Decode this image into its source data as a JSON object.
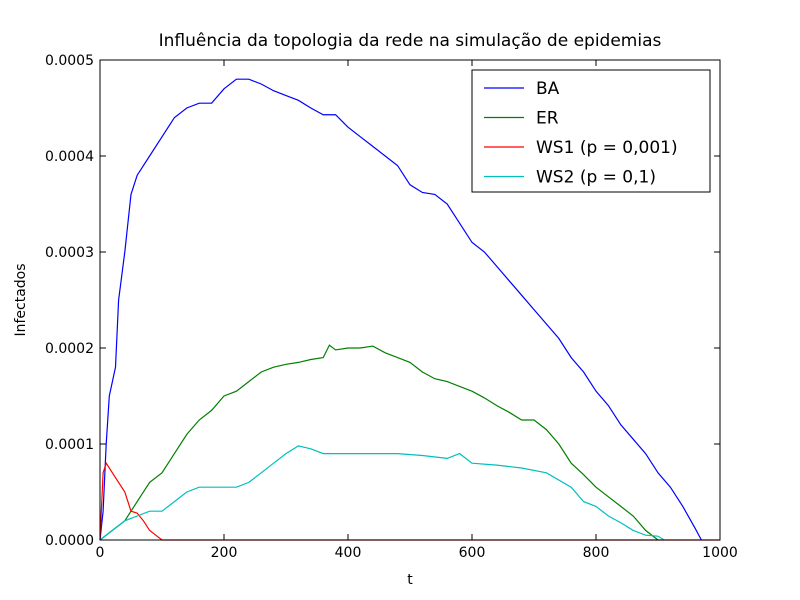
{
  "chart_data": {
    "type": "line",
    "title": "Influência da topologia da rede na simulação de epidemias",
    "xlabel": "t",
    "ylabel": "Infectados",
    "xlim": [
      0,
      1000
    ],
    "xticks": [
      0,
      200,
      400,
      600,
      800,
      1000
    ],
    "ylim": [
      0,
      0.0005
    ],
    "yticks": [
      {
        "value": 0,
        "label": "0.0000"
      },
      {
        "value": 0.0001,
        "label": "0.0001"
      },
      {
        "value": 0.0002,
        "label": "0.0002"
      },
      {
        "value": 0.0003,
        "label": "0.0003"
      },
      {
        "value": 0.0004,
        "label": "0.0004"
      },
      {
        "value": 0.0005,
        "label": "0.0005"
      }
    ],
    "legend": "upper right",
    "series": [
      {
        "name": "BA",
        "color": "#0000ff",
        "x": [
          0,
          5,
          10,
          15,
          25,
          30,
          40,
          50,
          60,
          80,
          100,
          120,
          140,
          160,
          180,
          200,
          220,
          240,
          260,
          280,
          300,
          320,
          340,
          360,
          380,
          400,
          420,
          440,
          460,
          480,
          500,
          520,
          540,
          560,
          580,
          600,
          620,
          640,
          660,
          680,
          700,
          720,
          740,
          760,
          780,
          800,
          820,
          840,
          860,
          880,
          900,
          920,
          940,
          960,
          970
        ],
        "values": [
          0,
          3e-05,
          0.0001,
          0.00015,
          0.00018,
          0.00025,
          0.0003,
          0.00036,
          0.00038,
          0.0004,
          0.00042,
          0.00044,
          0.00045,
          0.000455,
          0.000455,
          0.00047,
          0.00048,
          0.00048,
          0.000475,
          0.000468,
          0.000463,
          0.000458,
          0.00045,
          0.000443,
          0.000443,
          0.00043,
          0.00042,
          0.00041,
          0.0004,
          0.00039,
          0.00037,
          0.000362,
          0.00036,
          0.00035,
          0.00033,
          0.00031,
          0.0003,
          0.000285,
          0.00027,
          0.000255,
          0.00024,
          0.000225,
          0.00021,
          0.00019,
          0.000175,
          0.000155,
          0.00014,
          0.00012,
          0.000105,
          9e-05,
          7e-05,
          5.5e-05,
          3.5e-05,
          1.2e-05,
          0
        ]
      },
      {
        "name": "ER",
        "color": "#008000",
        "x": [
          0,
          20,
          40,
          60,
          80,
          100,
          120,
          140,
          160,
          180,
          200,
          220,
          240,
          260,
          280,
          300,
          320,
          340,
          360,
          370,
          380,
          400,
          420,
          440,
          460,
          480,
          500,
          520,
          540,
          560,
          580,
          600,
          620,
          640,
          660,
          680,
          700,
          720,
          740,
          760,
          780,
          800,
          820,
          840,
          860,
          880,
          900
        ],
        "values": [
          0,
          1e-05,
          2e-05,
          4e-05,
          6e-05,
          7e-05,
          9e-05,
          0.00011,
          0.000125,
          0.000135,
          0.00015,
          0.000155,
          0.000165,
          0.000175,
          0.00018,
          0.000183,
          0.000185,
          0.000188,
          0.00019,
          0.000203,
          0.000198,
          0.0002,
          0.0002,
          0.000202,
          0.000195,
          0.00019,
          0.000185,
          0.000175,
          0.000168,
          0.000165,
          0.00016,
          0.000155,
          0.000148,
          0.00014,
          0.000133,
          0.000125,
          0.000125,
          0.000115,
          0.0001,
          8e-05,
          6.8e-05,
          5.5e-05,
          4.5e-05,
          3.5e-05,
          2.5e-05,
          1e-05,
          0
        ]
      },
      {
        "name": "WS1 (p = 0,001)",
        "color": "#ff0000",
        "x": [
          0,
          5,
          10,
          20,
          30,
          40,
          50,
          60,
          70,
          80,
          90,
          100,
          1000
        ],
        "values": [
          0,
          7e-05,
          8e-05,
          7e-05,
          6e-05,
          5e-05,
          3e-05,
          2.8e-05,
          2e-05,
          1e-05,
          5e-06,
          0,
          0
        ]
      },
      {
        "name": "WS2 (p = 0,1)",
        "color": "#00bfbf",
        "x": [
          0,
          20,
          40,
          60,
          80,
          100,
          120,
          140,
          160,
          180,
          200,
          220,
          240,
          260,
          280,
          300,
          320,
          340,
          360,
          400,
          440,
          480,
          520,
          560,
          580,
          600,
          640,
          680,
          720,
          760,
          780,
          800,
          820,
          840,
          860,
          880,
          900,
          910
        ],
        "values": [
          0,
          1e-05,
          2e-05,
          2.5e-05,
          3e-05,
          3e-05,
          4e-05,
          5e-05,
          5.5e-05,
          5.5e-05,
          5.5e-05,
          5.5e-05,
          6e-05,
          7e-05,
          8e-05,
          9e-05,
          9.8e-05,
          9.5e-05,
          9e-05,
          9e-05,
          9e-05,
          9e-05,
          8.8e-05,
          8.5e-05,
          9e-05,
          8e-05,
          7.8e-05,
          7.5e-05,
          7e-05,
          5.5e-05,
          4e-05,
          3.5e-05,
          2.5e-05,
          1.8e-05,
          1e-05,
          5e-06,
          4e-06,
          0
        ]
      }
    ]
  }
}
